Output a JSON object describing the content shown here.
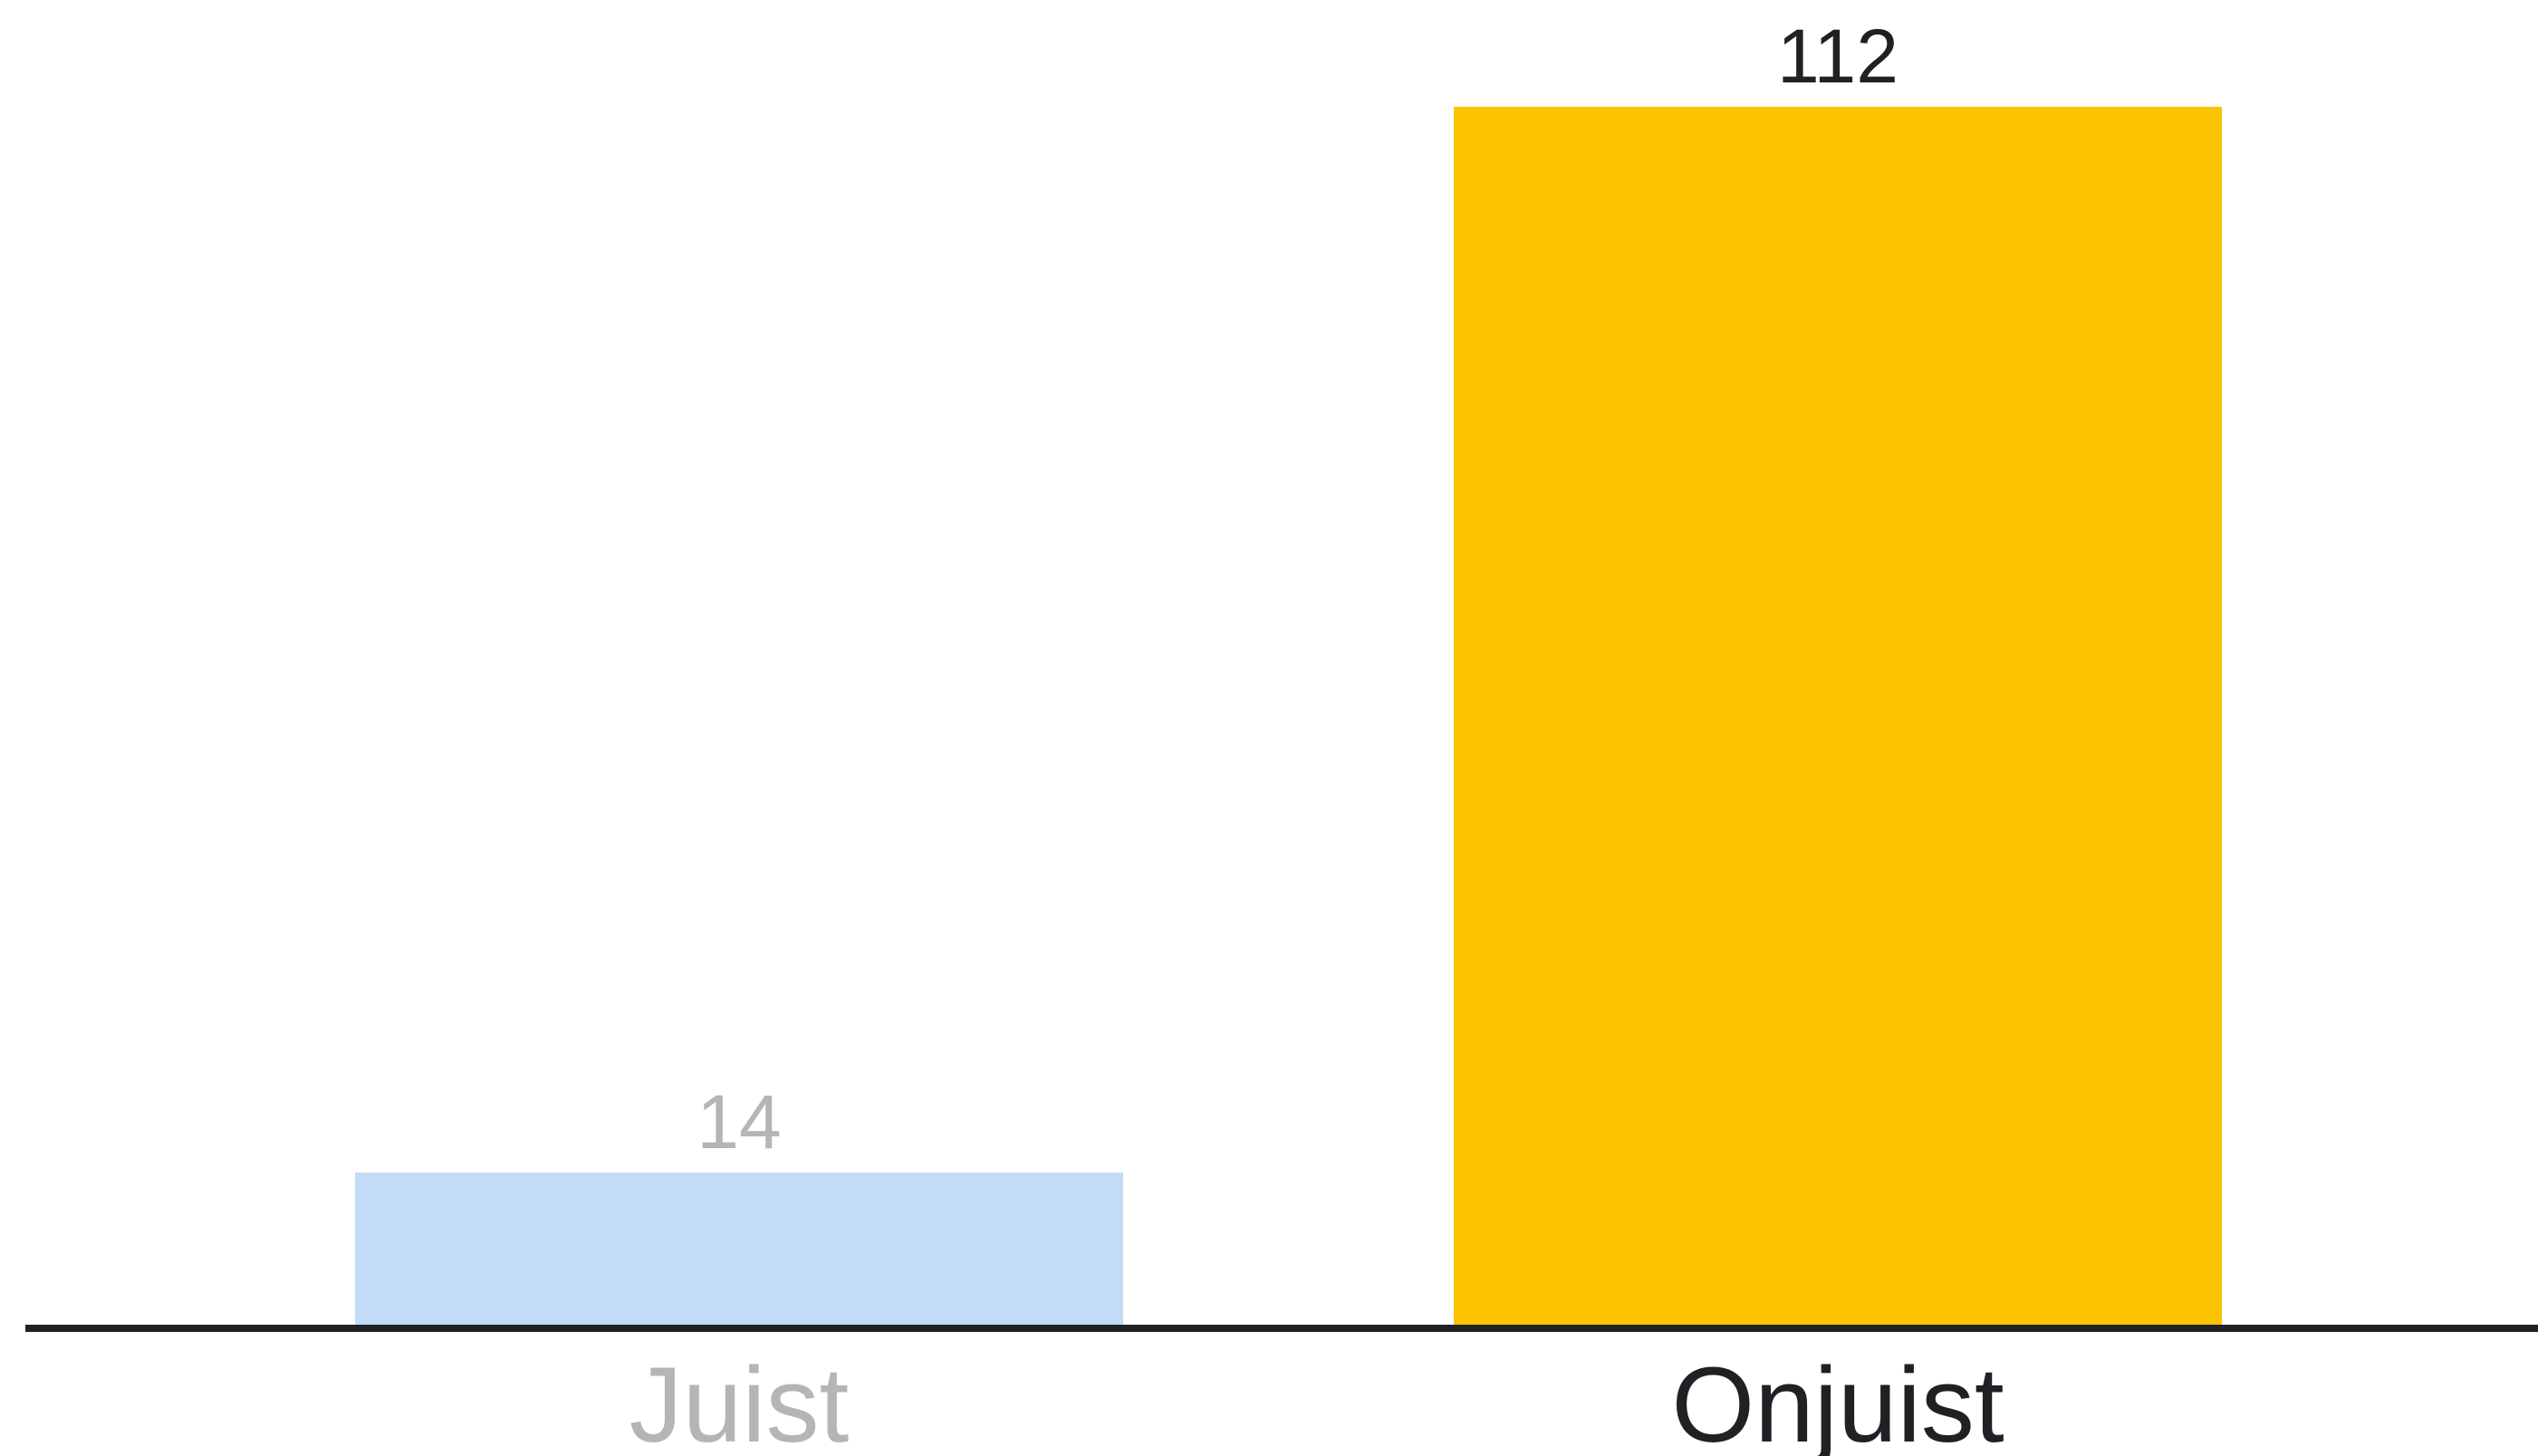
{
  "chart_data": {
    "type": "bar",
    "categories": [
      "Juist",
      "Onjuist"
    ],
    "values": [
      14,
      112
    ],
    "ylim": [
      0,
      112
    ],
    "grid": false,
    "legend": "none",
    "bar_colors": [
      "#c2dbf7",
      "#fbc300"
    ],
    "label_colors": [
      "#b5b5b5",
      "#202124"
    ],
    "axis_color": "#202124"
  }
}
